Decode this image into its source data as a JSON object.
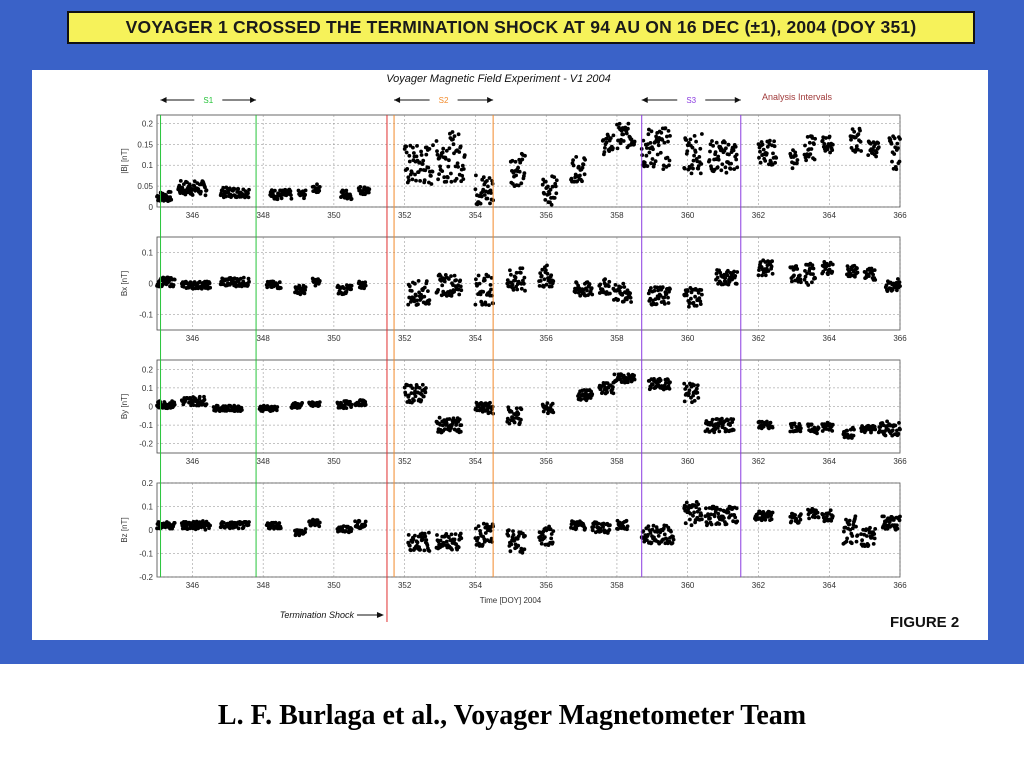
{
  "slide": {
    "title": "VOYAGER 1 CROSSED THE TERMINATION SHOCK AT 94 AU ON 16 DEC (±1), 2004 (DOY 351)",
    "footer": "L. F. Burlaga et al., Voyager Magnetometer Team",
    "figure_label": "FIGURE 2",
    "colors": {
      "background": "#3a62c8",
      "title_box": "#f6f25a"
    }
  },
  "chart_data": {
    "type": "scatter",
    "title": "Voyager Magnetic Field Experiment  - V1 2004",
    "xlabel": "Time [DOY] 2004",
    "xlim": [
      345,
      366
    ],
    "xticks": [
      346,
      348,
      350,
      352,
      354,
      356,
      358,
      360,
      362,
      364,
      366
    ],
    "grid": true,
    "panels": [
      {
        "ylabel": "|B| [nT]",
        "ylim": [
          0,
          0.22
        ],
        "yticks": [
          0,
          0.05,
          0.1,
          0.15,
          0.2
        ],
        "yticklabels": [
          "0",
          "0.05",
          "0.1",
          "0.15",
          "0.2"
        ],
        "segments": [
          {
            "x": [
              345.0,
              345.4
            ],
            "y": 0.025,
            "spread": 0.012
          },
          {
            "x": [
              345.6,
              346.4
            ],
            "y": 0.045,
            "spread": 0.018
          },
          {
            "x": [
              346.8,
              347.6
            ],
            "y": 0.035,
            "spread": 0.012
          },
          {
            "x": [
              348.2,
              348.8
            ],
            "y": 0.03,
            "spread": 0.012
          },
          {
            "x": [
              349.0,
              349.2
            ],
            "y": 0.03,
            "spread": 0.01
          },
          {
            "x": [
              349.4,
              349.6
            ],
            "y": 0.045,
            "spread": 0.01
          },
          {
            "x": [
              350.2,
              350.5
            ],
            "y": 0.03,
            "spread": 0.012
          },
          {
            "x": [
              350.7,
              351.0
            ],
            "y": 0.04,
            "spread": 0.01
          },
          {
            "x": [
              352.0,
              352.8
            ],
            "y": 0.1,
            "spread": 0.05
          },
          {
            "x": [
              352.9,
              353.7
            ],
            "y": 0.12,
            "spread": 0.06
          },
          {
            "x": [
              354.0,
              354.5
            ],
            "y": 0.04,
            "spread": 0.04
          },
          {
            "x": [
              355.0,
              355.4
            ],
            "y": 0.09,
            "spread": 0.04
          },
          {
            "x": [
              355.9,
              356.3
            ],
            "y": 0.04,
            "spread": 0.035
          },
          {
            "x": [
              356.7,
              357.1
            ],
            "y": 0.09,
            "spread": 0.03
          },
          {
            "x": [
              357.6,
              357.9
            ],
            "y": 0.15,
            "spread": 0.025
          },
          {
            "x": [
              358.0,
              358.5
            ],
            "y": 0.17,
            "spread": 0.03
          },
          {
            "x": [
              358.7,
              359.5
            ],
            "y": 0.14,
            "spread": 0.05
          },
          {
            "x": [
              359.9,
              360.4
            ],
            "y": 0.13,
            "spread": 0.05
          },
          {
            "x": [
              360.6,
              361.4
            ],
            "y": 0.12,
            "spread": 0.04
          },
          {
            "x": [
              362.0,
              362.5
            ],
            "y": 0.13,
            "spread": 0.03
          },
          {
            "x": [
              362.9,
              363.1
            ],
            "y": 0.12,
            "spread": 0.03
          },
          {
            "x": [
              363.3,
              363.6
            ],
            "y": 0.14,
            "spread": 0.03
          },
          {
            "x": [
              363.8,
              364.1
            ],
            "y": 0.15,
            "spread": 0.02
          },
          {
            "x": [
              364.6,
              364.9
            ],
            "y": 0.16,
            "spread": 0.03
          },
          {
            "x": [
              365.1,
              365.4
            ],
            "y": 0.14,
            "spread": 0.02
          },
          {
            "x": [
              365.7,
              366.0
            ],
            "y": 0.13,
            "spread": 0.04
          }
        ]
      },
      {
        "ylabel": "Bx [nT]",
        "ylim": [
          -0.15,
          0.15
        ],
        "yticks": [
          -0.1,
          0,
          0.1
        ],
        "yticklabels": [
          "-0.1",
          "0",
          "0.1"
        ],
        "segments": [
          {
            "x": [
              345.0,
              345.5
            ],
            "y": 0.005,
            "spread": 0.015
          },
          {
            "x": [
              345.7,
              346.5
            ],
            "y": -0.005,
            "spread": 0.012
          },
          {
            "x": [
              346.8,
              347.6
            ],
            "y": 0.005,
            "spread": 0.015
          },
          {
            "x": [
              348.1,
              348.5
            ],
            "y": -0.005,
            "spread": 0.012
          },
          {
            "x": [
              348.9,
              349.2
            ],
            "y": -0.02,
            "spread": 0.015
          },
          {
            "x": [
              349.4,
              349.6
            ],
            "y": 0.005,
            "spread": 0.012
          },
          {
            "x": [
              350.1,
              350.5
            ],
            "y": -0.02,
            "spread": 0.015
          },
          {
            "x": [
              350.7,
              350.9
            ],
            "y": -0.005,
            "spread": 0.012
          },
          {
            "x": [
              352.1,
              352.7
            ],
            "y": -0.03,
            "spread": 0.04
          },
          {
            "x": [
              352.9,
              353.6
            ],
            "y": -0.005,
            "spread": 0.035
          },
          {
            "x": [
              354.0,
              354.5
            ],
            "y": -0.02,
            "spread": 0.05
          },
          {
            "x": [
              354.9,
              355.4
            ],
            "y": 0.01,
            "spread": 0.04
          },
          {
            "x": [
              355.8,
              356.2
            ],
            "y": 0.02,
            "spread": 0.04
          },
          {
            "x": [
              356.8,
              357.3
            ],
            "y": -0.02,
            "spread": 0.025
          },
          {
            "x": [
              357.5,
              357.8
            ],
            "y": -0.01,
            "spread": 0.025
          },
          {
            "x": [
              357.9,
              358.4
            ],
            "y": -0.03,
            "spread": 0.03
          },
          {
            "x": [
              358.9,
              359.5
            ],
            "y": -0.04,
            "spread": 0.03
          },
          {
            "x": [
              359.9,
              360.4
            ],
            "y": -0.04,
            "spread": 0.035
          },
          {
            "x": [
              360.8,
              361.4
            ],
            "y": 0.02,
            "spread": 0.025
          },
          {
            "x": [
              362.0,
              362.4
            ],
            "y": 0.05,
            "spread": 0.025
          },
          {
            "x": [
              362.9,
              363.2
            ],
            "y": 0.03,
            "spread": 0.03
          },
          {
            "x": [
              363.3,
              363.6
            ],
            "y": 0.03,
            "spread": 0.035
          },
          {
            "x": [
              363.8,
              364.1
            ],
            "y": 0.05,
            "spread": 0.02
          },
          {
            "x": [
              364.5,
              364.8
            ],
            "y": 0.04,
            "spread": 0.02
          },
          {
            "x": [
              365.0,
              365.3
            ],
            "y": 0.03,
            "spread": 0.02
          },
          {
            "x": [
              365.6,
              366.0
            ],
            "y": -0.005,
            "spread": 0.02
          }
        ]
      },
      {
        "ylabel": "By [nT]",
        "ylim": [
          -0.25,
          0.25
        ],
        "yticks": [
          -0.2,
          -0.1,
          0,
          0.1,
          0.2
        ],
        "yticklabels": [
          "-0.2",
          "-0.1",
          "0",
          "0.1",
          "0.2"
        ],
        "segments": [
          {
            "x": [
              345.0,
              345.5
            ],
            "y": 0.01,
            "spread": 0.02
          },
          {
            "x": [
              345.7,
              346.4
            ],
            "y": 0.03,
            "spread": 0.025
          },
          {
            "x": [
              346.6,
              347.4
            ],
            "y": -0.01,
            "spread": 0.015
          },
          {
            "x": [
              347.9,
              348.4
            ],
            "y": -0.01,
            "spread": 0.015
          },
          {
            "x": [
              348.8,
              349.1
            ],
            "y": 0.005,
            "spread": 0.015
          },
          {
            "x": [
              349.3,
              349.6
            ],
            "y": 0.01,
            "spread": 0.015
          },
          {
            "x": [
              350.1,
              350.5
            ],
            "y": 0.01,
            "spread": 0.02
          },
          {
            "x": [
              350.6,
              350.9
            ],
            "y": 0.02,
            "spread": 0.015
          },
          {
            "x": [
              352.0,
              352.6
            ],
            "y": 0.07,
            "spread": 0.05
          },
          {
            "x": [
              352.9,
              353.6
            ],
            "y": -0.1,
            "spread": 0.04
          },
          {
            "x": [
              354.0,
              354.5
            ],
            "y": -0.01,
            "spread": 0.03
          },
          {
            "x": [
              354.9,
              355.3
            ],
            "y": -0.05,
            "spread": 0.05
          },
          {
            "x": [
              355.9,
              356.2
            ],
            "y": -0.01,
            "spread": 0.03
          },
          {
            "x": [
              356.9,
              357.3
            ],
            "y": 0.06,
            "spread": 0.03
          },
          {
            "x": [
              357.5,
              357.9
            ],
            "y": 0.1,
            "spread": 0.03
          },
          {
            "x": [
              357.9,
              358.5
            ],
            "y": 0.15,
            "spread": 0.025
          },
          {
            "x": [
              358.9,
              359.5
            ],
            "y": 0.12,
            "spread": 0.03
          },
          {
            "x": [
              359.9,
              360.3
            ],
            "y": 0.07,
            "spread": 0.06
          },
          {
            "x": [
              360.5,
              361.3
            ],
            "y": -0.1,
            "spread": 0.04
          },
          {
            "x": [
              362.0,
              362.4
            ],
            "y": -0.1,
            "spread": 0.02
          },
          {
            "x": [
              362.9,
              363.2
            ],
            "y": -0.11,
            "spread": 0.025
          },
          {
            "x": [
              363.4,
              363.7
            ],
            "y": -0.12,
            "spread": 0.025
          },
          {
            "x": [
              363.8,
              364.1
            ],
            "y": -0.11,
            "spread": 0.025
          },
          {
            "x": [
              364.4,
              364.7
            ],
            "y": -0.14,
            "spread": 0.03
          },
          {
            "x": [
              364.9,
              365.3
            ],
            "y": -0.12,
            "spread": 0.02
          },
          {
            "x": [
              365.4,
              366.0
            ],
            "y": -0.12,
            "spread": 0.04
          }
        ]
      },
      {
        "ylabel": "Bz [nT]",
        "ylim": [
          -0.2,
          0.2
        ],
        "yticks": [
          -0.2,
          -0.1,
          0,
          0.1,
          0.2
        ],
        "yticklabels": [
          "-0.2",
          "-0.1",
          "0",
          "0.1",
          "0.2"
        ],
        "segments": [
          {
            "x": [
              345.0,
              345.5
            ],
            "y": 0.02,
            "spread": 0.015
          },
          {
            "x": [
              345.7,
              346.5
            ],
            "y": 0.02,
            "spread": 0.02
          },
          {
            "x": [
              346.8,
              347.6
            ],
            "y": 0.02,
            "spread": 0.015
          },
          {
            "x": [
              348.1,
              348.5
            ],
            "y": 0.02,
            "spread": 0.015
          },
          {
            "x": [
              348.9,
              349.2
            ],
            "y": -0.01,
            "spread": 0.015
          },
          {
            "x": [
              349.3,
              349.6
            ],
            "y": 0.03,
            "spread": 0.015
          },
          {
            "x": [
              350.1,
              350.5
            ],
            "y": 0.005,
            "spread": 0.015
          },
          {
            "x": [
              350.6,
              350.9
            ],
            "y": 0.02,
            "spread": 0.02
          },
          {
            "x": [
              352.1,
              352.7
            ],
            "y": -0.05,
            "spread": 0.04
          },
          {
            "x": [
              352.9,
              353.6
            ],
            "y": -0.05,
            "spread": 0.035
          },
          {
            "x": [
              354.0,
              354.5
            ],
            "y": -0.02,
            "spread": 0.05
          },
          {
            "x": [
              354.9,
              355.4
            ],
            "y": -0.05,
            "spread": 0.05
          },
          {
            "x": [
              355.8,
              356.2
            ],
            "y": -0.02,
            "spread": 0.045
          },
          {
            "x": [
              356.7,
              357.1
            ],
            "y": 0.02,
            "spread": 0.02
          },
          {
            "x": [
              357.3,
              357.8
            ],
            "y": 0.01,
            "spread": 0.025
          },
          {
            "x": [
              358.0,
              358.3
            ],
            "y": 0.02,
            "spread": 0.02
          },
          {
            "x": [
              358.7,
              359.6
            ],
            "y": -0.02,
            "spread": 0.04
          },
          {
            "x": [
              359.9,
              360.4
            ],
            "y": 0.07,
            "spread": 0.05
          },
          {
            "x": [
              360.5,
              361.4
            ],
            "y": 0.06,
            "spread": 0.04
          },
          {
            "x": [
              361.9,
              362.4
            ],
            "y": 0.06,
            "spread": 0.02
          },
          {
            "x": [
              362.9,
              363.2
            ],
            "y": 0.05,
            "spread": 0.02
          },
          {
            "x": [
              363.4,
              363.7
            ],
            "y": 0.07,
            "spread": 0.025
          },
          {
            "x": [
              363.8,
              364.1
            ],
            "y": 0.06,
            "spread": 0.03
          },
          {
            "x": [
              364.4,
              364.8
            ],
            "y": 0.0,
            "spread": 0.06
          },
          {
            "x": [
              364.9,
              365.3
            ],
            "y": -0.03,
            "spread": 0.04
          },
          {
            "x": [
              365.5,
              366.0
            ],
            "y": 0.03,
            "spread": 0.03
          }
        ]
      }
    ],
    "analysis_intervals": {
      "label": "Analysis Intervals",
      "intervals": [
        {
          "name": "S1",
          "start": 345.1,
          "end": 347.8,
          "color": "#27c43a"
        },
        {
          "name": "S2",
          "start": 351.7,
          "end": 354.5,
          "color": "#f28a2a"
        },
        {
          "name": "S3",
          "start": 358.7,
          "end": 361.5,
          "color": "#8a3ae0"
        }
      ]
    },
    "termination_shock": {
      "label": "Termination Shock",
      "doy": 351.5,
      "color": "#e03030"
    }
  }
}
